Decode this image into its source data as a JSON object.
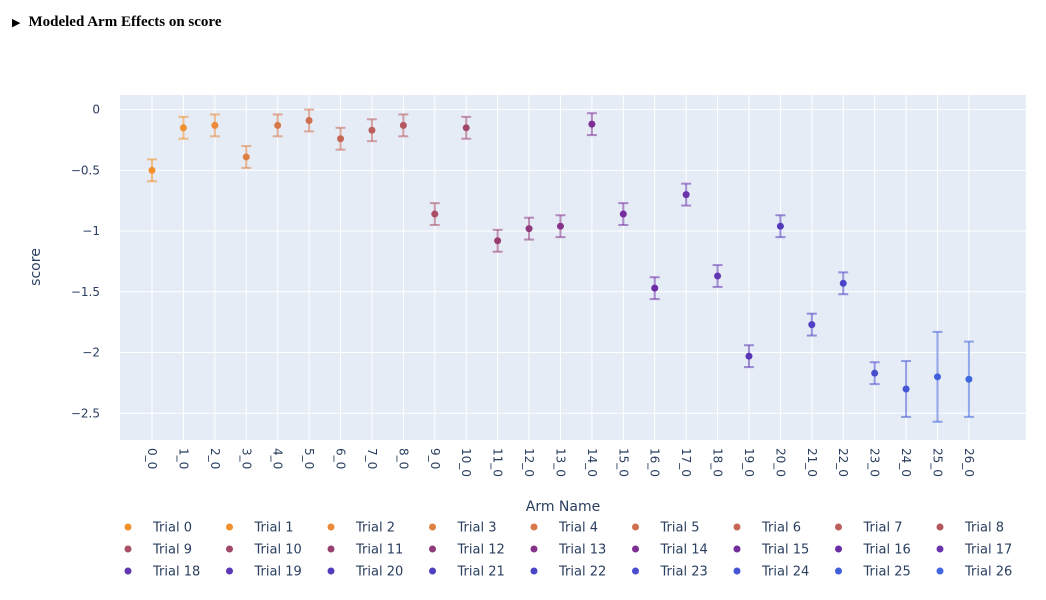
{
  "header": {
    "toggle_icon": "triangle-right-icon",
    "title": "Modeled Arm Effects on score"
  },
  "chart_data": {
    "type": "scatter",
    "xlabel": "Arm Name",
    "ylabel": "score",
    "ylim": [
      -2.72,
      0.12
    ],
    "yticks": [
      0,
      -0.5,
      -1,
      -1.5,
      -2,
      -2.5
    ],
    "ytick_labels": [
      "0",
      "−0.5",
      "−1",
      "−1.5",
      "−2",
      "−2.5"
    ],
    "grid": true,
    "legend_position": "bottom",
    "categories": [
      "0_0",
      "1_0",
      "2_0",
      "3_0",
      "4_0",
      "5_0",
      "6_0",
      "7_0",
      "8_0",
      "9_0",
      "10_0",
      "11_0",
      "12_0",
      "13_0",
      "14_0",
      "15_0",
      "16_0",
      "17_0",
      "18_0",
      "19_0",
      "20_0",
      "21_0",
      "22_0",
      "23_0",
      "24_0",
      "25_0",
      "26_0"
    ],
    "series": [
      {
        "name": "Trial 0",
        "x": "0_0",
        "y": -0.5,
        "err": 0.09,
        "color": "#f28e2b"
      },
      {
        "name": "Trial 1",
        "x": "1_0",
        "y": -0.15,
        "err": 0.09,
        "color": "#f1902c"
      },
      {
        "name": "Trial 2",
        "x": "2_0",
        "y": -0.13,
        "err": 0.09,
        "color": "#ea8a3a"
      },
      {
        "name": "Trial 3",
        "x": "3_0",
        "y": -0.39,
        "err": 0.09,
        "color": "#e07f42"
      },
      {
        "name": "Trial 4",
        "x": "4_0",
        "y": -0.13,
        "err": 0.09,
        "color": "#d7774a"
      },
      {
        "name": "Trial 5",
        "x": "5_0",
        "y": -0.09,
        "err": 0.09,
        "color": "#cf7050"
      },
      {
        "name": "Trial 6",
        "x": "6_0",
        "y": -0.24,
        "err": 0.09,
        "color": "#c76654"
      },
      {
        "name": "Trial 7",
        "x": "7_0",
        "y": -0.17,
        "err": 0.09,
        "color": "#be5e5c"
      },
      {
        "name": "Trial 8",
        "x": "8_0",
        "y": -0.13,
        "err": 0.09,
        "color": "#b5575f"
      },
      {
        "name": "Trial 9",
        "x": "9_0",
        "y": -0.86,
        "err": 0.09,
        "color": "#aa4e66"
      },
      {
        "name": "Trial 10",
        "x": "10_0",
        "y": -0.15,
        "err": 0.09,
        "color": "#a2476a"
      },
      {
        "name": "Trial 11",
        "x": "11_0",
        "y": -1.08,
        "err": 0.09,
        "color": "#983f72"
      },
      {
        "name": "Trial 12",
        "x": "12_0",
        "y": -0.98,
        "err": 0.09,
        "color": "#8e3a7b"
      },
      {
        "name": "Trial 13",
        "x": "13_0",
        "y": -0.96,
        "err": 0.09,
        "color": "#86348a"
      },
      {
        "name": "Trial 14",
        "x": "14_0",
        "y": -0.12,
        "err": 0.09,
        "color": "#7d2f94"
      },
      {
        "name": "Trial 15",
        "x": "15_0",
        "y": -0.86,
        "err": 0.09,
        "color": "#732d9d"
      },
      {
        "name": "Trial 16",
        "x": "16_0",
        "y": -1.47,
        "err": 0.09,
        "color": "#6a2da6"
      },
      {
        "name": "Trial 17",
        "x": "17_0",
        "y": -0.7,
        "err": 0.09,
        "color": "#6a33ab"
      },
      {
        "name": "Trial 18",
        "x": "18_0",
        "y": -1.37,
        "err": 0.09,
        "color": "#6136b0"
      },
      {
        "name": "Trial 19",
        "x": "19_0",
        "y": -2.03,
        "err": 0.09,
        "color": "#5a37b5"
      },
      {
        "name": "Trial 20",
        "x": "20_0",
        "y": -0.96,
        "err": 0.09,
        "color": "#5439bb"
      },
      {
        "name": "Trial 21",
        "x": "21_0",
        "y": -1.77,
        "err": 0.09,
        "color": "#4f3fc1"
      },
      {
        "name": "Trial 22",
        "x": "22_0",
        "y": -1.43,
        "err": 0.09,
        "color": "#4a45c7"
      },
      {
        "name": "Trial 23",
        "x": "23_0",
        "y": -2.17,
        "err": 0.09,
        "color": "#474dcd"
      },
      {
        "name": "Trial 24",
        "x": "24_0",
        "y": -2.3,
        "err": 0.23,
        "color": "#4456d3"
      },
      {
        "name": "Trial 25",
        "x": "25_0",
        "y": -2.2,
        "err": 0.37,
        "color": "#415fd9"
      },
      {
        "name": "Trial 26",
        "x": "26_0",
        "y": -2.22,
        "err": 0.31,
        "color": "#3f68df"
      }
    ]
  }
}
